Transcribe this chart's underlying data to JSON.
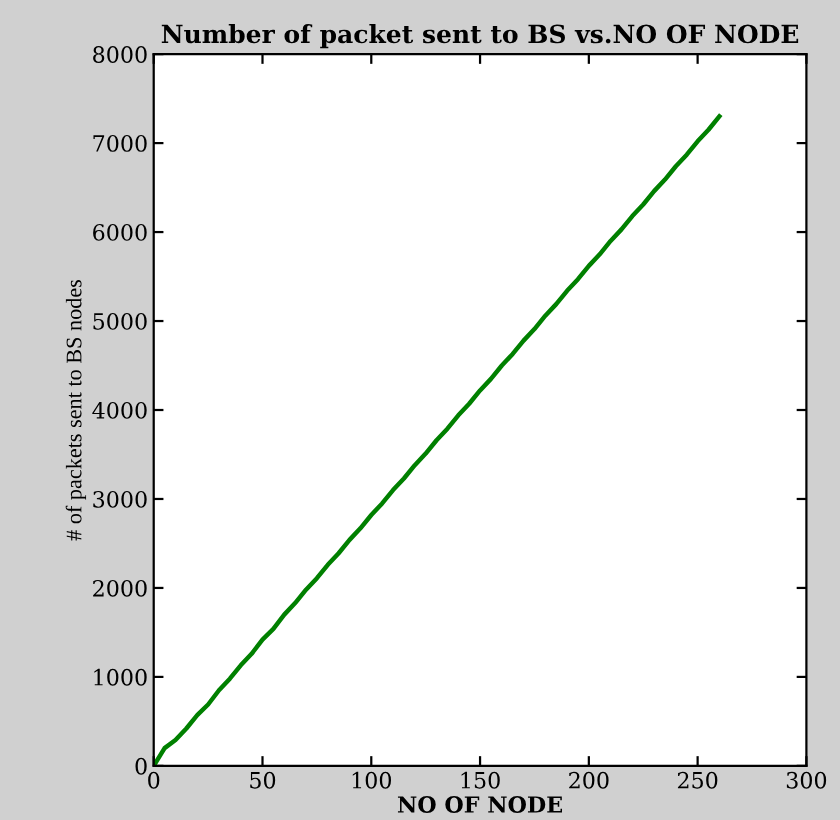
{
  "chart_data": {
    "type": "line",
    "title": "Number of packet sent to BS vs.NO OF NODE",
    "xlabel": "NO OF NODE",
    "ylabel": "# of packets sent to BS nodes",
    "x": [
      0,
      5,
      10,
      15,
      20,
      25,
      30,
      35,
      40,
      45,
      50,
      55,
      60,
      65,
      70,
      75,
      80,
      85,
      90,
      95,
      100,
      105,
      110,
      115,
      120,
      125,
      130,
      135,
      140,
      145,
      150,
      155,
      160,
      165,
      170,
      175,
      180,
      185,
      190,
      195,
      200,
      205,
      210,
      215,
      220,
      225,
      230,
      235,
      240,
      245,
      250,
      255,
      260
    ],
    "series": [
      {
        "color": "#008000",
        "values": [
          0,
          200,
          290,
          420,
          570,
          690,
          850,
          980,
          1130,
          1260,
          1420,
          1540,
          1700,
          1830,
          1980,
          2110,
          2260,
          2390,
          2540,
          2670,
          2820,
          2950,
          3100,
          3230,
          3380,
          3510,
          3660,
          3790,
          3940,
          4070,
          4220,
          4350,
          4500,
          4630,
          4780,
          4910,
          5060,
          5190,
          5340,
          5470,
          5620,
          5750,
          5900,
          6030,
          6180,
          6310,
          6460,
          6590,
          6740,
          6870,
          7020,
          7150,
          7300
        ]
      }
    ],
    "xlim": [
      0,
      300
    ],
    "ylim": [
      0,
      8000
    ],
    "xticks": [
      0,
      50,
      100,
      150,
      200,
      250,
      300
    ],
    "yticks": [
      0,
      1000,
      2000,
      3000,
      4000,
      5000,
      6000,
      7000,
      8000
    ],
    "grid": false,
    "legend": false,
    "marker": "none",
    "line_style": "solid"
  }
}
